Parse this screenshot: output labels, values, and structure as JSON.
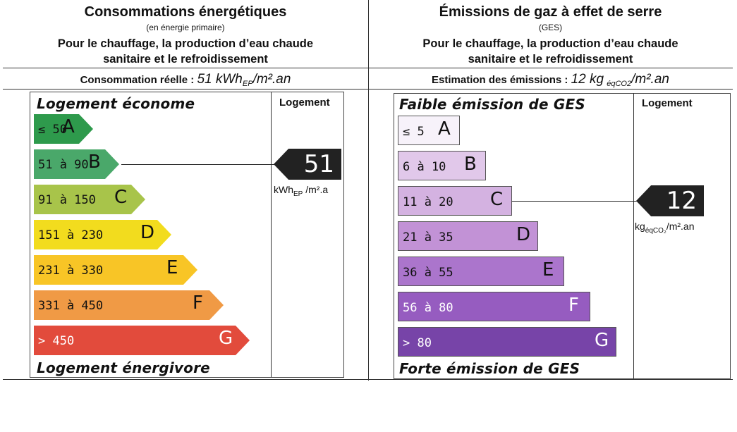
{
  "energy": {
    "title": "Consommations énergétiques",
    "subtitle": "(en énergie primaire)",
    "desc_line1": "Pour le chauffage, la production d’eau chaude",
    "desc_line2": "sanitaire et le refroidissement",
    "measure_label": "Consommation réelle :",
    "measure_value": "51 kWh",
    "measure_sub": "EP",
    "measure_unit": "/m².an",
    "scale_top": "Logement économe",
    "scale_bottom": "Logement énergivore",
    "logement_header": "Logement",
    "classes": [
      {
        "range": "≤ 50",
        "letter": "A",
        "color": "#2e9a4c"
      },
      {
        "range": "51 à 90",
        "letter": "B",
        "color": "#4aa86a"
      },
      {
        "range": "91 à 150",
        "letter": "C",
        "color": "#a8c44a"
      },
      {
        "range": "151 à 230",
        "letter": "D",
        "color": "#f2dc1e"
      },
      {
        "range": "231 à 330",
        "letter": "E",
        "color": "#f8c526"
      },
      {
        "range": "331 à 450",
        "letter": "F",
        "color": "#f09a45"
      },
      {
        "range": "> 450",
        "letter": "G",
        "color": "#e24b3c"
      }
    ],
    "current_value": "51",
    "current_class": "B",
    "unit_main": "kWh",
    "unit_sub": "EP",
    "unit_rest": " /m².a"
  },
  "ghg": {
    "title": "Émissions de gaz à effet de serre",
    "subtitle": "(GES)",
    "desc_line1": "Pour le chauffage, la production d’eau chaude",
    "desc_line2": "sanitaire et le refroidissement",
    "measure_label": "Estimation des émissions :",
    "measure_value": "12 kg",
    "measure_sub": "éqCO2",
    "measure_unit": "/m².an",
    "scale_top": "Faible émission de GES",
    "scale_bottom": "Forte émission de GES",
    "logement_header": "Logement",
    "classes": [
      {
        "range": "≤ 5",
        "letter": "A",
        "color": "#f7f2fa"
      },
      {
        "range": "6 à 10",
        "letter": "B",
        "color": "#e1c8ea"
      },
      {
        "range": "11 à 20",
        "letter": "C",
        "color": "#d4b2e1"
      },
      {
        "range": "21 à 35",
        "letter": "D",
        "color": "#c292d6"
      },
      {
        "range": "36 à 55",
        "letter": "E",
        "color": "#ab75cc"
      },
      {
        "range": "56 à 80",
        "letter": "F",
        "color": "#965cc0"
      },
      {
        "range": "> 80",
        "letter": "G",
        "color": "#7744a8"
      }
    ],
    "current_value": "12",
    "current_class": "C",
    "unit_main": "kg",
    "unit_sub": "éqCO₂",
    "unit_rest": "/m².an"
  }
}
